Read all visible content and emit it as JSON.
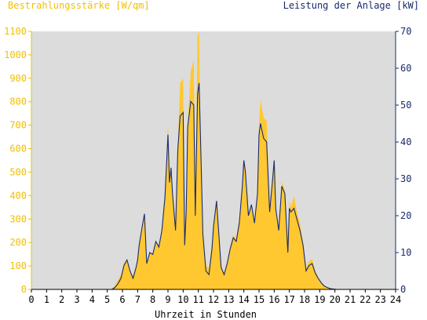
{
  "chart_data": {
    "type": "area",
    "title_left": "Bestrahlungsstärke [W/qm]",
    "title_right": "Leistung der Anlage [kW]",
    "xlabel": "Uhrzeit in Stunden",
    "xlim": [
      0,
      24
    ],
    "x_ticks": [
      "0",
      "1",
      "2",
      "3",
      "4",
      "5",
      "6",
      "7",
      "8",
      "9",
      "10",
      "11",
      "12",
      "13",
      "14",
      "15",
      "16",
      "17",
      "18",
      "19",
      "20",
      "21",
      "22",
      "23",
      "24"
    ],
    "ylim_left": [
      0,
      1100
    ],
    "y_ticks_left": [
      "0",
      "100",
      "200",
      "300",
      "400",
      "500",
      "600",
      "700",
      "800",
      "900",
      "1000",
      "1100"
    ],
    "ylim_right": [
      0,
      70
    ],
    "y_ticks_right": [
      "0",
      "10",
      "20",
      "30",
      "40",
      "50",
      "60",
      "70"
    ],
    "grid": false,
    "colors": {
      "plot_bg": "#dcdcdc",
      "irradiance_fill": "#ffc830",
      "power_line": "#1a2a6c",
      "left_axis": "#f0c000",
      "right_axis": "#1a2a6c"
    },
    "series": [
      {
        "name": "Bestrahlungsstärke [W/qm]",
        "axis": "left",
        "x": [
          0,
          5.3,
          5.5,
          5.7,
          5.9,
          6.1,
          6.3,
          6.5,
          6.7,
          6.9,
          7.0,
          7.1,
          7.3,
          7.45,
          7.6,
          7.8,
          8.0,
          8.2,
          8.4,
          8.6,
          8.8,
          9.0,
          9.1,
          9.2,
          9.3,
          9.5,
          9.65,
          9.8,
          10.0,
          10.1,
          10.2,
          10.3,
          10.5,
          10.7,
          10.8,
          10.95,
          11.05,
          11.15,
          11.3,
          11.5,
          11.7,
          11.9,
          12.0,
          12.2,
          12.5,
          12.7,
          12.9,
          13.1,
          13.3,
          13.5,
          13.7,
          13.9,
          14.0,
          14.1,
          14.3,
          14.5,
          14.7,
          14.9,
          15.0,
          15.1,
          15.3,
          15.5,
          15.7,
          15.9,
          16.0,
          16.1,
          16.3,
          16.5,
          16.7,
          16.9,
          17.0,
          17.1,
          17.3,
          17.5,
          17.7,
          17.9,
          18.1,
          18.3,
          18.5,
          18.7,
          18.9,
          19.1,
          19.3,
          19.5,
          19.7,
          19.9,
          20.1,
          24
        ],
        "values": [
          0,
          0,
          15,
          40,
          60,
          110,
          130,
          70,
          60,
          100,
          120,
          190,
          250,
          320,
          110,
          160,
          150,
          200,
          180,
          260,
          400,
          710,
          450,
          520,
          400,
          250,
          600,
          880,
          900,
          220,
          350,
          700,
          930,
          980,
          400,
          1080,
          1100,
          640,
          250,
          100,
          90,
          200,
          280,
          380,
          100,
          70,
          120,
          180,
          230,
          220,
          300,
          450,
          540,
          500,
          320,
          360,
          280,
          400,
          700,
          810,
          730,
          720,
          330,
          500,
          560,
          340,
          260,
          460,
          420,
          200,
          380,
          350,
          400,
          330,
          280,
          200,
          90,
          120,
          130,
          80,
          50,
          30,
          15,
          10,
          5,
          2,
          0,
          0
        ]
      },
      {
        "name": "Leistung der Anlage [kW]",
        "axis": "right",
        "x": [
          0,
          5.3,
          5.5,
          5.7,
          5.9,
          6.1,
          6.3,
          6.5,
          6.7,
          6.9,
          7.0,
          7.1,
          7.3,
          7.45,
          7.6,
          7.8,
          8.0,
          8.2,
          8.4,
          8.6,
          8.8,
          9.0,
          9.1,
          9.2,
          9.3,
          9.5,
          9.65,
          9.8,
          10.0,
          10.1,
          10.2,
          10.3,
          10.5,
          10.7,
          10.8,
          10.95,
          11.05,
          11.15,
          11.3,
          11.5,
          11.7,
          11.9,
          12.0,
          12.2,
          12.5,
          12.7,
          12.9,
          13.1,
          13.3,
          13.5,
          13.7,
          13.9,
          14.0,
          14.1,
          14.3,
          14.5,
          14.7,
          14.9,
          15.0,
          15.1,
          15.3,
          15.5,
          15.7,
          15.9,
          16.0,
          16.1,
          16.3,
          16.5,
          16.7,
          16.9,
          17.0,
          17.1,
          17.3,
          17.5,
          17.7,
          17.9,
          18.1,
          18.3,
          18.5,
          18.7,
          18.9,
          19.1,
          19.3,
          19.5,
          19.7,
          19.9,
          20.1,
          24
        ],
        "values": [
          0,
          0,
          0.5,
          1.5,
          3,
          6.5,
          8,
          5,
          3,
          6,
          8,
          12,
          17,
          20.5,
          7,
          10,
          9.5,
          13,
          11.5,
          16,
          25,
          42,
          29,
          33,
          26,
          16,
          38,
          47,
          48,
          12,
          21,
          44,
          51,
          50,
          20,
          53,
          56,
          40,
          15,
          5,
          4,
          11,
          17,
          24,
          6,
          4,
          7,
          11,
          14,
          13,
          18,
          28,
          35,
          32,
          20,
          23,
          18,
          26,
          42,
          45,
          41,
          40,
          21,
          30,
          35,
          22,
          16,
          28,
          26,
          10,
          22,
          21,
          22,
          19,
          16,
          12,
          5,
          6.5,
          7,
          4.5,
          3,
          1.8,
          0.9,
          0.5,
          0.2,
          0.1,
          0,
          0
        ]
      }
    ]
  }
}
